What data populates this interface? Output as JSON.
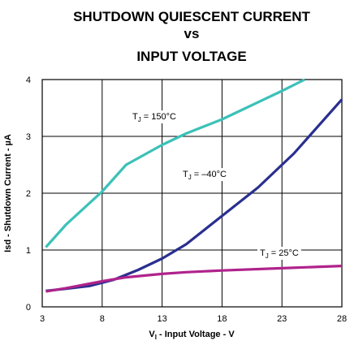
{
  "chart_data": {
    "type": "line",
    "title": [
      "SHUTDOWN QUIESCENT CURRENT",
      "vs",
      "INPUT VOLTAGE"
    ],
    "xlabel": {
      "main": "V",
      "sub": "I",
      "rest": " - Input Voltage - V"
    },
    "ylabel": "Isd - Shutdown Current - µA",
    "xlim": [
      3,
      28
    ],
    "xticks": [
      3,
      8,
      13,
      18,
      23,
      28
    ],
    "ylim": [
      0,
      4
    ],
    "yticks": [
      0,
      1,
      2,
      3,
      4
    ],
    "grid": true,
    "series": [
      {
        "name": {
          "main": "T",
          "sub": "J",
          "rest": " = 150°C"
        },
        "color": "#3cc1b8",
        "x": [
          3.3,
          5,
          8,
          10,
          13,
          15,
          18,
          20,
          23,
          24.9
        ],
        "values": [
          1.05,
          1.45,
          2.03,
          2.5,
          2.85,
          3.05,
          3.3,
          3.5,
          3.8,
          4.0
        ]
      },
      {
        "name": {
          "main": "T",
          "sub": "J",
          "rest": " = –40°C"
        },
        "color": "#2a2f8f",
        "x": [
          3.3,
          5,
          7,
          9,
          11,
          13,
          15,
          18,
          21,
          24,
          28
        ],
        "values": [
          0.28,
          0.32,
          0.37,
          0.48,
          0.65,
          0.85,
          1.1,
          1.6,
          2.1,
          2.7,
          3.65
        ]
      },
      {
        "name": {
          "main": "T",
          "sub": "J",
          "rest": " = 25°C"
        },
        "color": "#b0238c",
        "x": [
          3.3,
          5,
          8,
          10,
          13,
          15,
          18,
          23,
          28
        ],
        "values": [
          0.27,
          0.33,
          0.45,
          0.52,
          0.58,
          0.61,
          0.64,
          0.68,
          0.72
        ]
      }
    ]
  }
}
